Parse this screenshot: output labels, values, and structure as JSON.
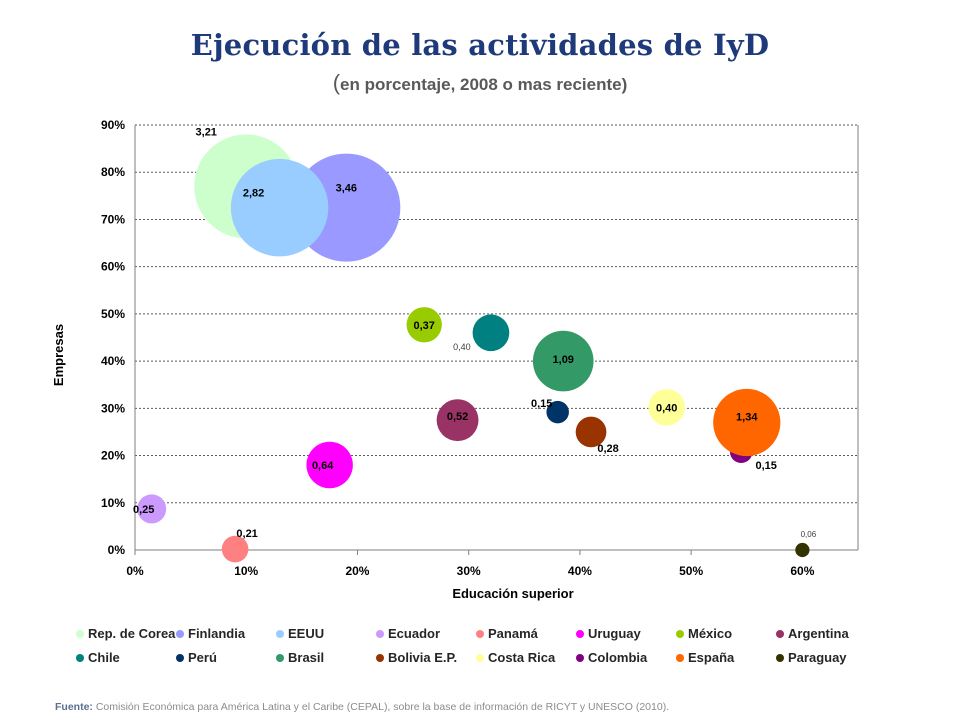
{
  "title": "Ejecución de las actividades de IyD",
  "subtitle_open": "(",
  "subtitle": "en porcentaje, 2008 o mas reciente)",
  "source_label": "Fuente:",
  "source_text": " Comisión Económica para América Latina y el Caribe (CEPAL), sobre la base de información de RICYT y UNESCO (2010).",
  "chart_data": {
    "type": "scatter",
    "subtype": "bubble",
    "xlabel": "Educación superior",
    "ylabel": "Empresas",
    "xlim": [
      0,
      0.65
    ],
    "ylim": [
      0,
      0.9
    ],
    "xticks": [
      "0%",
      "10%",
      "20%",
      "30%",
      "40%",
      "50%",
      "60%"
    ],
    "yticks": [
      "0%",
      "10%",
      "20%",
      "30%",
      "40%",
      "50%",
      "60%",
      "70%",
      "80%",
      "90%"
    ],
    "grid": "horizontal-dashed",
    "legend_position": "bottom",
    "series": [
      {
        "name": "Rep. de Corea",
        "x": 0.1,
        "y": 0.77,
        "size": 3.21,
        "label": "3,21",
        "color": "#ccffcc"
      },
      {
        "name": "Finlandia",
        "x": 0.19,
        "y": 0.725,
        "size": 3.46,
        "label": "3,46",
        "color": "#9999ff"
      },
      {
        "name": "EEUU",
        "x": 0.13,
        "y": 0.725,
        "size": 2.82,
        "label": "2,82",
        "color": "#99ccff"
      },
      {
        "name": "Ecuador",
        "x": 0.015,
        "y": 0.087,
        "size": 0.25,
        "label": "0,25",
        "color": "#cc99ff"
      },
      {
        "name": "Panamá",
        "x": 0.09,
        "y": 0.002,
        "size": 0.21,
        "label": "0,21",
        "color": "#ff8080"
      },
      {
        "name": "Uruguay",
        "x": 0.175,
        "y": 0.18,
        "size": 0.64,
        "label": "0,64",
        "color": "#ff00ff"
      },
      {
        "name": "México",
        "x": 0.26,
        "y": 0.477,
        "size": 0.37,
        "label": "0,37",
        "color": "#99cc00"
      },
      {
        "name": "Argentina",
        "x": 0.29,
        "y": 0.275,
        "size": 0.52,
        "label": "0,52",
        "color": "#993366"
      },
      {
        "name": "Chile",
        "x": 0.32,
        "y": 0.46,
        "size": 0.4,
        "label": "0,40",
        "color": "#008080"
      },
      {
        "name": "Perú",
        "x": 0.38,
        "y": 0.292,
        "size": 0.15,
        "label": "0,15",
        "color": "#003366"
      },
      {
        "name": "Brasil",
        "x": 0.385,
        "y": 0.4,
        "size": 1.09,
        "label": "1,09",
        "color": "#339966"
      },
      {
        "name": "Bolivia E.P.",
        "x": 0.41,
        "y": 0.25,
        "size": 0.28,
        "label": "0,28",
        "color": "#993300"
      },
      {
        "name": "Costa Rica",
        "x": 0.478,
        "y": 0.302,
        "size": 0.4,
        "label": "0,40",
        "color": "#ffff99"
      },
      {
        "name": "Colombia",
        "x": 0.545,
        "y": 0.208,
        "size": 0.15,
        "label": "0,15",
        "color": "#800080"
      },
      {
        "name": "España",
        "x": 0.55,
        "y": 0.27,
        "size": 1.34,
        "label": "1,34",
        "color": "#ff6600"
      },
      {
        "name": "Paraguay",
        "x": 0.6,
        "y": 0.0,
        "size": 0.06,
        "label": "0,06",
        "color": "#333300"
      }
    ]
  }
}
